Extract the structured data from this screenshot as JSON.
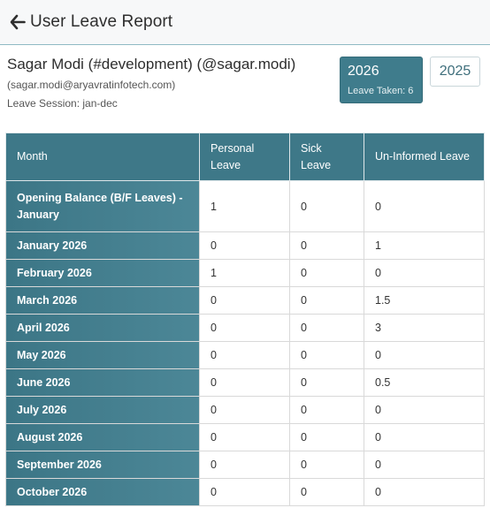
{
  "header": {
    "title": "User Leave Report",
    "back_icon": "arrow-left-icon"
  },
  "user": {
    "name": "Sagar Modi (#development) (@sagar.modi)",
    "email": "(sagar.modi@aryavratinfotech.com)",
    "session": "Leave Session: jan-dec"
  },
  "years": {
    "active": {
      "year": "2026",
      "leave_taken": "Leave Taken: 6"
    },
    "other": {
      "year": "2025"
    }
  },
  "table": {
    "headers": [
      "Month",
      "Personal Leave",
      "Sick Leave",
      "Un-Informed Leave"
    ],
    "rows": [
      {
        "month": "Opening Balance (B/F Leaves) - January",
        "personal": "1",
        "sick": "0",
        "uninformed": "0"
      },
      {
        "month": "January 2026",
        "personal": "0",
        "sick": "0",
        "uninformed": "1"
      },
      {
        "month": "February 2026",
        "personal": "1",
        "sick": "0",
        "uninformed": "0"
      },
      {
        "month": "March 2026",
        "personal": "0",
        "sick": "0",
        "uninformed": "1.5"
      },
      {
        "month": "April 2026",
        "personal": "0",
        "sick": "0",
        "uninformed": "3"
      },
      {
        "month": "May 2026",
        "personal": "0",
        "sick": "0",
        "uninformed": "0"
      },
      {
        "month": "June 2026",
        "personal": "0",
        "sick": "0",
        "uninformed": "0.5"
      },
      {
        "month": "July 2026",
        "personal": "0",
        "sick": "0",
        "uninformed": "0"
      },
      {
        "month": "August 2026",
        "personal": "0",
        "sick": "0",
        "uninformed": "0"
      },
      {
        "month": "September 2026",
        "personal": "0",
        "sick": "0",
        "uninformed": "0"
      },
      {
        "month": "October 2026",
        "personal": "0",
        "sick": "0",
        "uninformed": "0"
      }
    ]
  }
}
